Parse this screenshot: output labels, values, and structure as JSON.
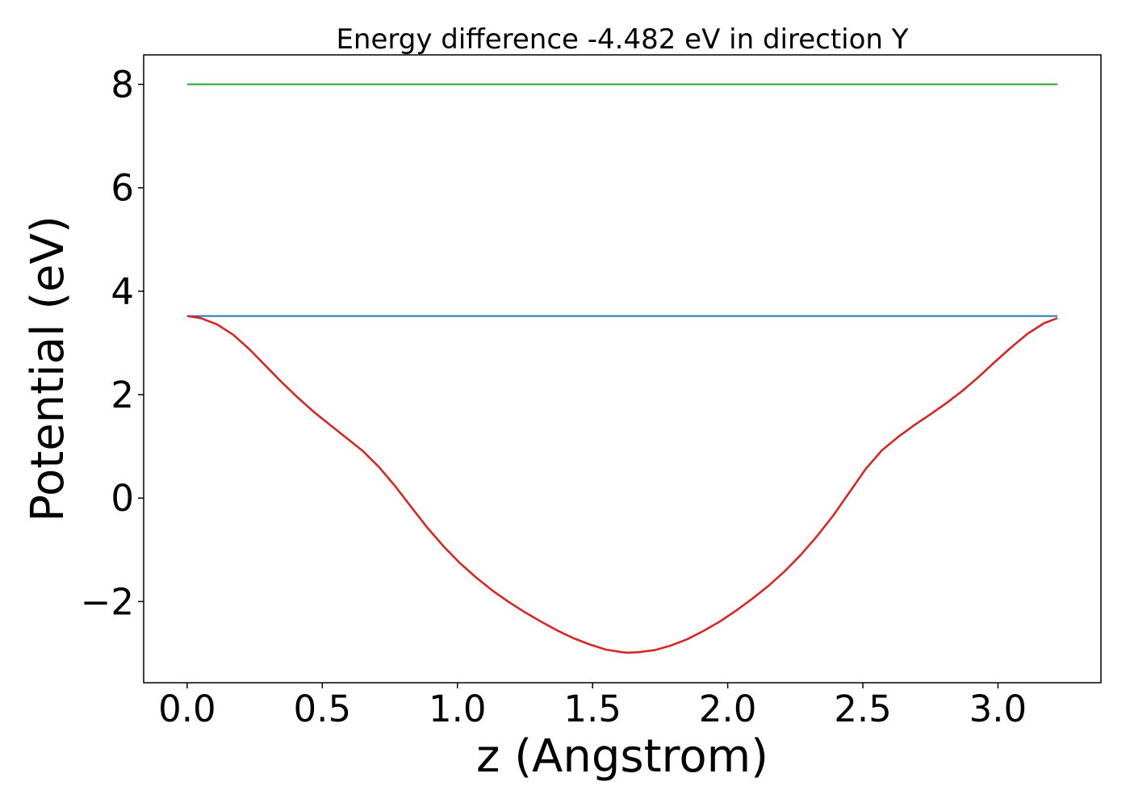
{
  "chart_data": {
    "type": "line",
    "title": "Energy difference -4.482 eV in direction Y",
    "xlabel": "z (Angstrom)",
    "ylabel": "Potential (eV)",
    "xlim": [
      -0.161,
      3.381
    ],
    "ylim": [
      -3.57,
      8.57
    ],
    "grid": false,
    "legend": "none",
    "x_ticks": [
      0.0,
      0.5,
      1.0,
      1.5,
      2.0,
      2.5,
      3.0
    ],
    "x_tick_labels": [
      "0.0",
      "0.5",
      "1.0",
      "1.5",
      "2.0",
      "2.5",
      "3.0"
    ],
    "y_ticks": [
      -2,
      0,
      2,
      4,
      6,
      8
    ],
    "y_tick_labels": [
      "−2",
      "0",
      "2",
      "4",
      "6",
      "8"
    ],
    "series": [
      {
        "color": "#2ca02c",
        "x": [
          0.0,
          3.22
        ],
        "y": [
          8.0,
          8.0
        ]
      },
      {
        "color": "#1f77b4",
        "x": [
          0.0,
          3.22
        ],
        "y": [
          3.52,
          3.52
        ]
      },
      {
        "color": "#d62728",
        "x": [
          0.0,
          0.05,
          0.11,
          0.17,
          0.23,
          0.29,
          0.35,
          0.41,
          0.47,
          0.53,
          0.59,
          0.65,
          0.71,
          0.77,
          0.83,
          0.89,
          0.95,
          1.01,
          1.07,
          1.13,
          1.19,
          1.25,
          1.31,
          1.37,
          1.43,
          1.49,
          1.55,
          1.61,
          1.63,
          1.67,
          1.73,
          1.79,
          1.85,
          1.91,
          1.97,
          2.03,
          2.09,
          2.15,
          2.21,
          2.27,
          2.33,
          2.39,
          2.45,
          2.51,
          2.57,
          2.63,
          2.69,
          2.75,
          2.81,
          2.87,
          2.93,
          2.99,
          3.05,
          3.11,
          3.17,
          3.22
        ],
        "y": [
          3.52,
          3.48,
          3.36,
          3.16,
          2.88,
          2.56,
          2.24,
          1.94,
          1.66,
          1.41,
          1.16,
          0.91,
          0.6,
          0.23,
          -0.18,
          -0.58,
          -0.94,
          -1.26,
          -1.54,
          -1.79,
          -2.01,
          -2.21,
          -2.39,
          -2.56,
          -2.71,
          -2.83,
          -2.93,
          -2.98,
          -2.99,
          -2.98,
          -2.94,
          -2.85,
          -2.73,
          -2.57,
          -2.39,
          -2.18,
          -1.95,
          -1.7,
          -1.42,
          -1.1,
          -0.74,
          -0.34,
          0.11,
          0.56,
          0.92,
          1.18,
          1.41,
          1.62,
          1.84,
          2.08,
          2.35,
          2.64,
          2.92,
          3.18,
          3.38,
          3.48
        ]
      }
    ]
  }
}
